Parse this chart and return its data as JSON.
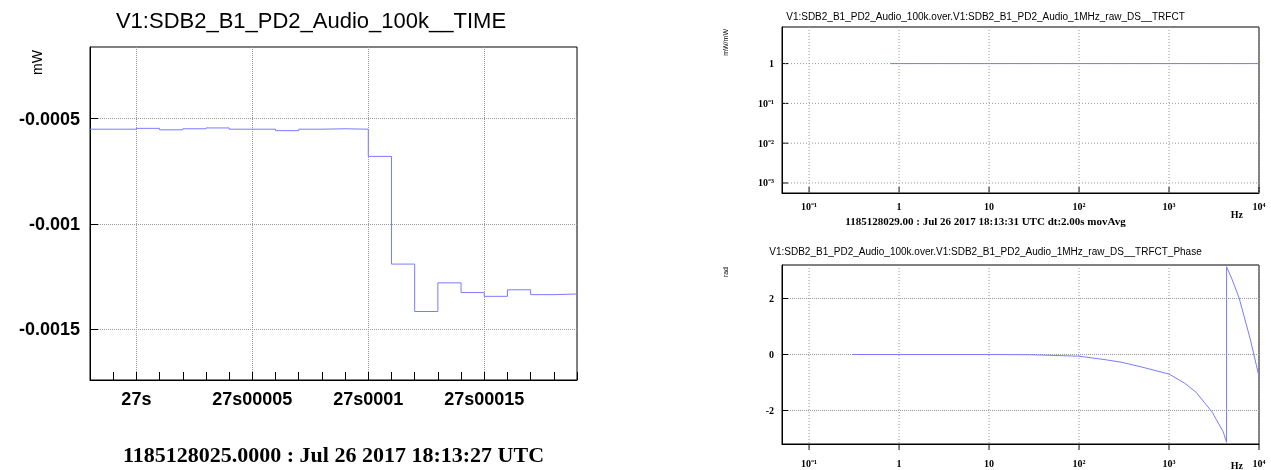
{
  "chart_data": [
    {
      "type": "step",
      "title": "V1:SDB2_B1_PD2_Audio_100k__TIME",
      "xlabel": "1185128025.0000 : Jul 26 2017 18:13:27 UTC",
      "ylabel": "mW",
      "color": "#7b7bff",
      "categories": [
        null,
        null,
        "27s",
        null,
        null,
        null,
        null,
        "27s00005",
        null,
        null,
        null,
        null,
        "27s0001",
        null,
        null,
        null,
        null,
        "27s00015",
        null,
        null,
        null,
        null
      ],
      "values": [
        -0.00055,
        -0.00055,
        -0.000546,
        -0.000553,
        -0.000548,
        -0.000544,
        -0.00055,
        -0.00055,
        -0.000557,
        -0.00055,
        -0.000548,
        -0.00055,
        -0.000679,
        -0.00119,
        -0.001415,
        -0.001279,
        -0.001325,
        -0.001343,
        -0.001312,
        -0.001335,
        -0.001332,
        -0.001332
      ],
      "ylim": [
        -0.00174,
        -0.00016
      ],
      "yticks": [
        -0.0005,
        -0.001,
        -0.0015
      ],
      "grid": true
    },
    {
      "type": "line",
      "title": "V1:SDB2_B1_PD2_Audio_100k.over.V1:SDB2_B1_PD2_Audio_1MHz_raw_DS__TRFCT",
      "xlabel": "Hz",
      "ylabel": "mW/mW",
      "annotations": [
        "1185128029.00 : Jul 26 2017 18:13:31 UTC dt:2.00s movAvg"
      ],
      "color": "#7b7bff",
      "x": [
        0.8,
        1,
        10,
        100,
        1000,
        3000,
        10000
      ],
      "values": [
        1,
        1,
        1,
        1,
        1,
        1,
        1
      ],
      "log": "xy",
      "xlim": [
        0.05,
        10000
      ],
      "ylim": [
        0.00056,
        8.3
      ],
      "xticks": [
        {
          "value": 0.1,
          "label": "10⁻¹"
        },
        {
          "value": 1,
          "label": "1"
        },
        {
          "value": 10,
          "label": "10"
        },
        {
          "value": 100,
          "label": "10²"
        },
        {
          "value": 1000,
          "label": "10³"
        },
        {
          "value": 10000,
          "label": "10⁴"
        }
      ],
      "yticks": [
        {
          "value": 1,
          "label": "1"
        },
        {
          "value": 0.1,
          "label": "10⁻¹"
        },
        {
          "value": 0.01,
          "label": "10⁻²"
        },
        {
          "value": 0.001,
          "label": "10⁻³"
        }
      ],
      "grid": true
    },
    {
      "type": "line",
      "title": "V1:SDB2_B1_PD2_Audio_100k.over.V1:SDB2_B1_PD2_Audio_1MHz_raw_DS__TRFCT_Phase",
      "xlabel": "Hz",
      "ylabel": "rad",
      "color": "#7b7bff",
      "x": [
        0.3,
        1,
        10,
        30,
        100,
        200,
        300,
        500,
        1000,
        1500,
        2000,
        3000,
        4000,
        4360,
        4360,
        5000,
        6000,
        8000,
        10000
      ],
      "values": [
        0,
        0,
        0,
        -0.01,
        -0.06,
        -0.19,
        -0.28,
        -0.45,
        -0.7,
        -1.03,
        -1.35,
        -2.05,
        -2.76,
        -3.14,
        3.14,
        2.7,
        2.03,
        0.55,
        -0.79
      ],
      "log": "x",
      "xlim": [
        0.05,
        10000
      ],
      "ylim": [
        -3.2,
        3.2
      ],
      "xticks": [
        {
          "value": 0.1,
          "label": "10⁻¹"
        },
        {
          "value": 1,
          "label": "1"
        },
        {
          "value": 10,
          "label": "10"
        },
        {
          "value": 100,
          "label": "10²"
        },
        {
          "value": 1000,
          "label": "10³"
        },
        {
          "value": 10000,
          "label": "10⁴"
        }
      ],
      "yticks": [
        -2,
        0,
        2
      ],
      "grid": true
    }
  ]
}
